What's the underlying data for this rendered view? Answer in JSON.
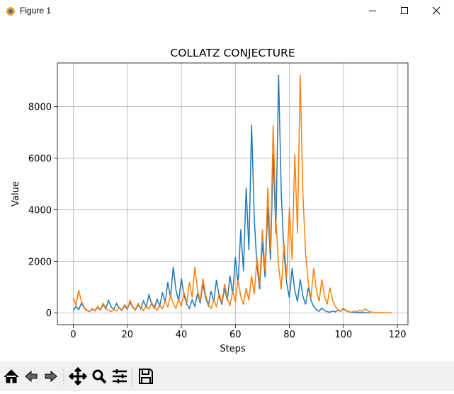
{
  "window_title": "Figure 1",
  "chart_data": {
    "type": "line",
    "title": "COLLATZ CONJECTURE",
    "xlabel": "Steps",
    "ylabel": "Value",
    "xlim": [
      -5.9,
      123.9
    ],
    "xticks": [
      0,
      20,
      40,
      60,
      80,
      100,
      120
    ],
    "ylim": [
      -460,
      9693
    ],
    "yticks": [
      0,
      2000,
      4000,
      6000,
      8000
    ],
    "grid": true,
    "series": [
      {
        "color": "#1f77b4",
        "values": [
          83,
          250,
          125,
          376,
          188,
          94,
          47,
          142,
          71,
          214,
          107,
          322,
          161,
          484,
          242,
          121,
          364,
          182,
          91,
          274,
          137,
          412,
          206,
          103,
          310,
          155,
          466,
          233,
          700,
          350,
          175,
          526,
          263,
          790,
          395,
          1186,
          593,
          1780,
          890,
          445,
          1336,
          668,
          334,
          167,
          502,
          251,
          754,
          377,
          1132,
          566,
          283,
          850,
          425,
          1276,
          638,
          319,
          958,
          479,
          1438,
          719,
          2158,
          1079,
          3238,
          1619,
          4858,
          2429,
          7288,
          3644,
          1822,
          911,
          2734,
          1367,
          4102,
          2051,
          6154,
          3077,
          9232,
          4616,
          2308,
          1154,
          577,
          1732,
          866,
          433,
          1300,
          650,
          325,
          976,
          488,
          244,
          122,
          61,
          184,
          92,
          46,
          23,
          70,
          35,
          106,
          53,
          160,
          80,
          40,
          20,
          10,
          5,
          16,
          8,
          4,
          2,
          1
        ]
      },
      {
        "color": "#ff7f0e",
        "values": [
          586,
          293,
          880,
          440,
          220,
          110,
          55,
          166,
          83,
          250,
          125,
          376,
          188,
          94,
          47,
          142,
          71,
          214,
          107,
          322,
          161,
          484,
          242,
          121,
          364,
          182,
          91,
          274,
          137,
          412,
          206,
          103,
          310,
          155,
          466,
          233,
          700,
          350,
          175,
          526,
          263,
          790,
          395,
          1186,
          593,
          1780,
          890,
          445,
          1336,
          668,
          334,
          167,
          502,
          251,
          754,
          377,
          1132,
          566,
          283,
          850,
          425,
          1276,
          638,
          319,
          958,
          479,
          1438,
          719,
          2158,
          1079,
          3238,
          1619,
          4858,
          2429,
          7288,
          3644,
          1822,
          911,
          2734,
          1367,
          4102,
          2051,
          6154,
          3077,
          9232,
          4616,
          2308,
          1154,
          577,
          1732,
          866,
          433,
          1300,
          650,
          325,
          976,
          488,
          244,
          122,
          61,
          184,
          92,
          46,
          23,
          70,
          35,
          106,
          53,
          160,
          80,
          40,
          20,
          10,
          5,
          16,
          8,
          4,
          2,
          1
        ]
      }
    ]
  }
}
